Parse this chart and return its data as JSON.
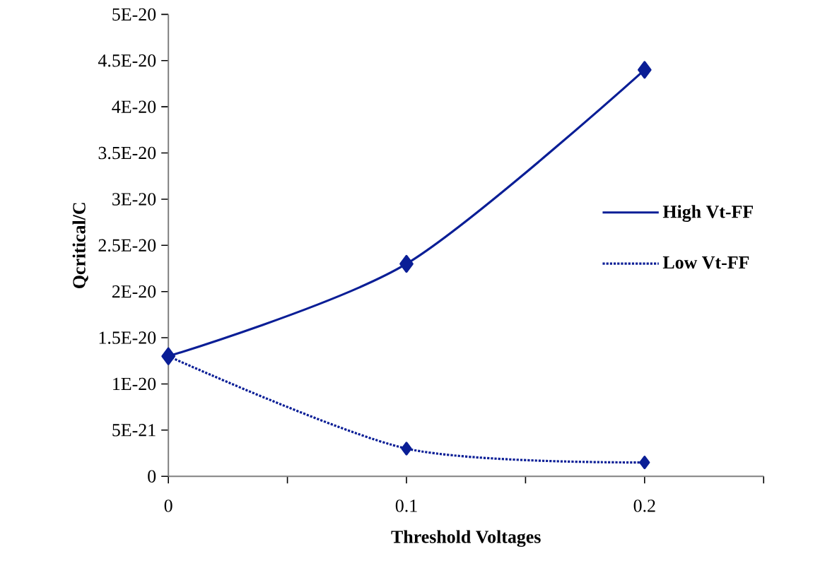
{
  "chart_data": {
    "type": "line",
    "xlabel": "Threshold Voltages",
    "ylabel": "Qcritical/C",
    "x": [
      0,
      0.1,
      0.2
    ],
    "series": [
      {
        "name": "High Vt-FF",
        "color": "#0a1e96",
        "line_style": "solid",
        "values": [
          1.3e-20,
          2.3e-20,
          4.4e-20
        ]
      },
      {
        "name": "Low Vt-FF",
        "color": "#0a1e96",
        "line_style": "dotted",
        "values": [
          1.3e-20,
          3e-21,
          1.5e-21
        ]
      }
    ],
    "xlim": [
      0,
      0.25
    ],
    "xticks": [
      0,
      {
        "value": 0.05,
        "label": null
      },
      0.1,
      {
        "value": 0.15,
        "label": null
      },
      0.2,
      {
        "value": 0.25,
        "label": null
      }
    ],
    "ylim": [
      0,
      5e-20
    ],
    "yticks": [
      0,
      {
        "value": 5e-21,
        "label": "5E-21"
      },
      {
        "value": 1e-20,
        "label": "1E-20"
      },
      {
        "value": 1.5e-20,
        "label": "1.5E-20"
      },
      {
        "value": 2e-20,
        "label": "2E-20"
      },
      {
        "value": 2.5e-20,
        "label": "2.5E-20"
      },
      {
        "value": 3e-20,
        "label": "3E-20"
      },
      {
        "value": 3.5e-20,
        "label": "3.5E-20"
      },
      {
        "value": 4e-20,
        "label": "4E-20"
      },
      {
        "value": 4.5e-20,
        "label": "4.5E-20"
      },
      {
        "value": 5e-20,
        "label": "5E-20"
      }
    ],
    "marker": "diamond",
    "legend": "right",
    "grid": false
  }
}
